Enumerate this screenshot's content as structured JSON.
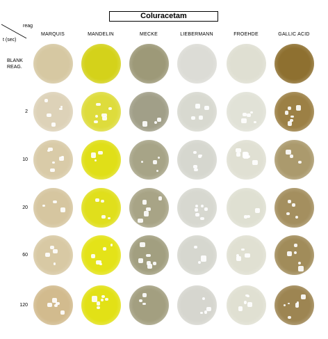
{
  "title": "Coluracetam",
  "corner": {
    "top": "reag",
    "bottom": "t (sec)"
  },
  "reagents": [
    "MARQUIS",
    "MANDELIN",
    "MECKE",
    "LIEBERMANN",
    "FROEHDE",
    "GALLIC ACID"
  ],
  "rows": [
    {
      "label": "BLANK\nREAG."
    },
    {
      "label": "2"
    },
    {
      "label": "10"
    },
    {
      "label": "20"
    },
    {
      "label": "60"
    },
    {
      "label": "120"
    }
  ],
  "colors": {
    "MARQUIS": [
      "#d6c8a2",
      "#ddd2b8",
      "#d9cba8",
      "#d6c6a0",
      "#d8c9a4",
      "#d2bb8e"
    ],
    "MANDELIN": [
      "#d4d21a",
      "#dedc3c",
      "#e0df18",
      "#e0df1c",
      "#e4e318",
      "#e2e116"
    ],
    "MECKE": [
      "#9d9978",
      "#a19f88",
      "#a7a487",
      "#a8a486",
      "#a29f80",
      "#a39f80"
    ],
    "LIEBERMANN": [
      "#dcdcd6",
      "#d8d9d0",
      "#d6d7cf",
      "#d7d8d0",
      "#d6d7cf",
      "#d6d6cf"
    ],
    "FROEHDE": [
      "#dfdfd2",
      "#e1e2d7",
      "#e0e0d3",
      "#dfe0d2",
      "#e0e0d2",
      "#e0e0d2"
    ],
    "GALLIC ACID": [
      "#8e7030",
      "#9c8045",
      "#ab9a6d",
      "#a48f5f",
      "#a18c5a",
      "#9d8552"
    ]
  }
}
